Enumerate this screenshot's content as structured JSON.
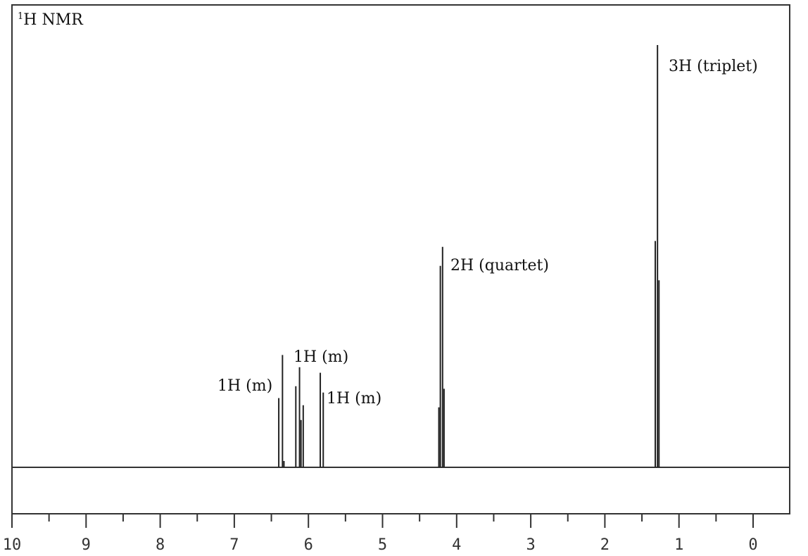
{
  "chart_data": {
    "type": "line",
    "title": "1H NMR",
    "title_parts": {
      "superscript": "1",
      "main": "H NMR"
    },
    "xlabel": "",
    "ylabel": "",
    "xlim": [
      10,
      -0.5
    ],
    "x_reversed": true,
    "grid": false,
    "x_ticks_major": [
      10,
      9,
      8,
      7,
      6,
      5,
      4,
      3,
      2,
      1,
      0
    ],
    "x_ticks_minor": [
      9.5,
      8.5,
      7.5,
      6.5,
      5.5,
      4.5,
      3.5,
      2.5,
      1.5,
      0.5
    ],
    "tick_labels": [
      "10",
      "9",
      "8",
      "7",
      "6",
      "5",
      "4",
      "3",
      "2",
      "1",
      "0"
    ],
    "peaks": [
      {
        "ppm": 6.4,
        "height": 0.164
      },
      {
        "ppm": 6.35,
        "height": 0.266
      },
      {
        "ppm": 6.33,
        "height": 0.015
      },
      {
        "ppm": 6.17,
        "height": 0.192
      },
      {
        "ppm": 6.12,
        "height": 0.237
      },
      {
        "ppm": 6.1,
        "height": 0.112
      },
      {
        "ppm": 6.07,
        "height": 0.147
      },
      {
        "ppm": 5.84,
        "height": 0.224
      },
      {
        "ppm": 5.8,
        "height": 0.177
      },
      {
        "ppm": 4.24,
        "height": 0.142
      },
      {
        "ppm": 4.22,
        "height": 0.477
      },
      {
        "ppm": 4.19,
        "height": 0.522
      },
      {
        "ppm": 4.17,
        "height": 0.186
      },
      {
        "ppm": 1.32,
        "height": 0.536
      },
      {
        "ppm": 1.29,
        "height": 1.0
      },
      {
        "ppm": 1.27,
        "height": 0.443
      }
    ],
    "annotations": [
      {
        "text": "1H (m)",
        "ppm": 6.38,
        "group": "multiplet-1"
      },
      {
        "text": "1H (m)",
        "ppm": 6.12,
        "group": "multiplet-2"
      },
      {
        "text": "1H (m)",
        "ppm": 5.82,
        "group": "multiplet-3"
      },
      {
        "text": "2H (quartet)",
        "ppm": 4.2,
        "group": "quartet"
      },
      {
        "text": "3H (triplet)",
        "ppm": 1.29,
        "group": "triplet"
      }
    ]
  },
  "labels": {
    "title_sup": "1",
    "title_main": "H NMR",
    "annot_m1": "1H (m)",
    "annot_m2": "1H (m)",
    "annot_m3": "1H (m)",
    "annot_quartet": "2H (quartet)",
    "annot_triplet": "3H (triplet)"
  }
}
